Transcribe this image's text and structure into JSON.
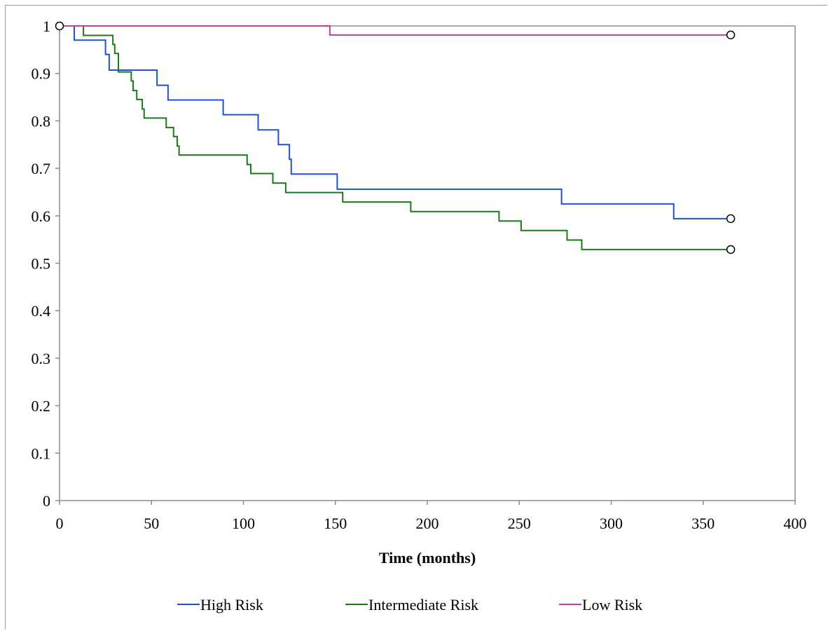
{
  "chart_data": {
    "type": "line",
    "title": "",
    "xlabel": "Time (months)",
    "ylabel": "",
    "xlim": [
      0,
      400
    ],
    "ylim": [
      0,
      1
    ],
    "x_ticks": [
      "0",
      "50",
      "100",
      "150",
      "200",
      "250",
      "300",
      "350",
      "400"
    ],
    "y_ticks": [
      "0",
      "0.1",
      "0.2",
      "0.3",
      "0.4",
      "0.5",
      "0.6",
      "0.7",
      "0.8",
      "0.9",
      "1"
    ],
    "grid": false,
    "legend_position": "bottom",
    "step": true,
    "series": [
      {
        "name": "High Risk",
        "color": "#2050d0",
        "x": [
          0,
          8,
          25,
          27,
          53,
          59,
          89,
          108,
          119,
          125,
          126,
          151,
          273,
          334,
          365
        ],
        "y": [
          1,
          0.97,
          0.94,
          0.907,
          0.875,
          0.844,
          0.813,
          0.781,
          0.75,
          0.719,
          0.688,
          0.656,
          0.625,
          0.594,
          0.594
        ],
        "censored_end": true
      },
      {
        "name": "Intermediate Risk",
        "color": "#1a7a1a",
        "x": [
          0,
          13,
          29,
          30,
          32,
          39,
          40,
          42,
          45,
          46,
          58,
          62,
          64,
          65,
          102,
          104,
          116,
          123,
          154,
          191,
          239,
          251,
          276,
          284,
          365
        ],
        "y": [
          1,
          0.98,
          0.961,
          0.942,
          0.903,
          0.884,
          0.864,
          0.845,
          0.825,
          0.806,
          0.786,
          0.767,
          0.747,
          0.728,
          0.708,
          0.689,
          0.669,
          0.649,
          0.629,
          0.609,
          0.589,
          0.569,
          0.549,
          0.529,
          0.529
        ],
        "censored_end": true
      },
      {
        "name": "Low Risk",
        "color": "#c0409a",
        "x": [
          0,
          147,
          365
        ],
        "y": [
          1,
          0.981,
          0.981
        ],
        "censored_start": true,
        "censored_end": true
      }
    ]
  }
}
